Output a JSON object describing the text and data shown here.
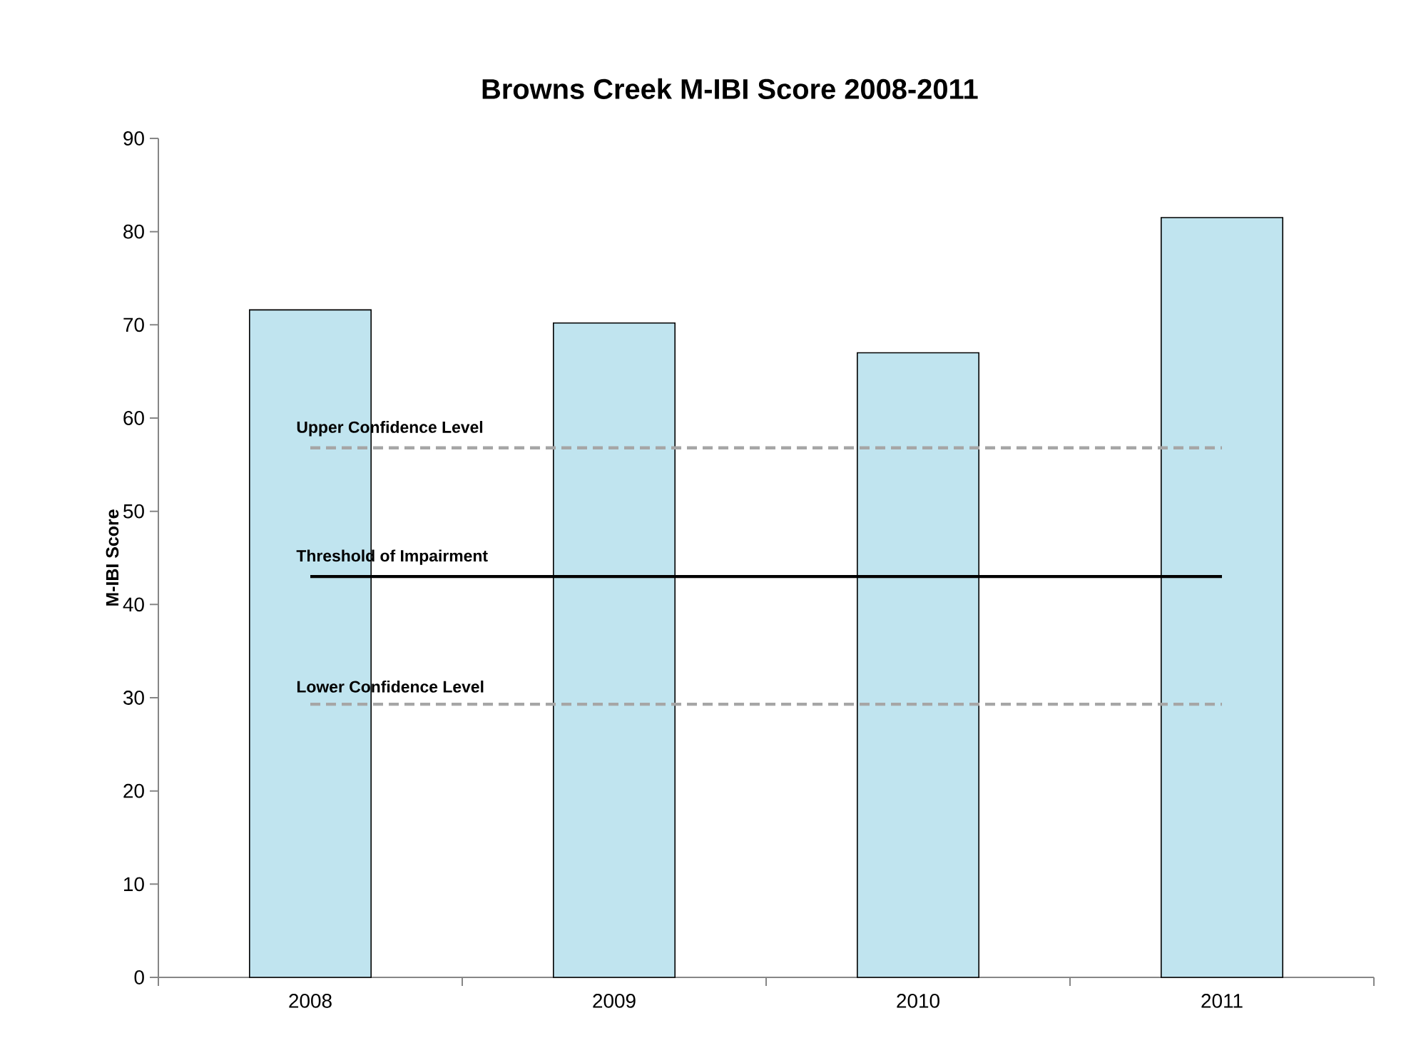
{
  "chart_data": {
    "type": "bar",
    "title": "Browns Creek M-IBI Score 2008-2011",
    "ylabel": "M-IBI Score",
    "categories": [
      "2008",
      "2009",
      "2010",
      "2011"
    ],
    "values": [
      71.6,
      70.2,
      67.0,
      81.5
    ],
    "color": "#c0e4ef",
    "ylim": [
      0,
      90
    ],
    "yticks": [
      0,
      10,
      20,
      30,
      40,
      50,
      60,
      70,
      80,
      90
    ],
    "ref_lines": [
      {
        "axis": "y",
        "value": 56.8,
        "label": "Upper Confidence Level",
        "color": "#a6a6a6",
        "line_style": "dashed"
      },
      {
        "axis": "y",
        "value": 43.0,
        "label": "Threshold of Impairment",
        "color": "#000000",
        "line_style": "solid"
      },
      {
        "axis": "y",
        "value": 29.3,
        "label": "Lower Confidence Level",
        "color": "#a6a6a6",
        "line_style": "dashed"
      }
    ]
  }
}
